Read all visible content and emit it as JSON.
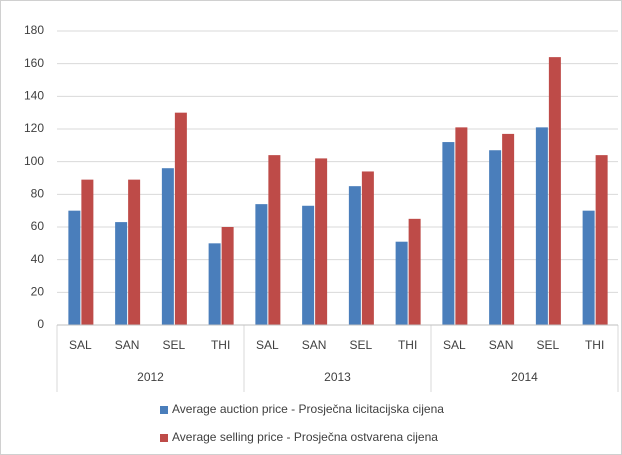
{
  "chart_data": {
    "type": "bar",
    "categories": [
      "SAL",
      "SAN",
      "SEL",
      "THI",
      "SAL",
      "SAN",
      "SEL",
      "THI",
      "SAL",
      "SAN",
      "SEL",
      "THI"
    ],
    "category_groups": [
      "2012",
      "2013",
      "2014"
    ],
    "series": [
      {
        "name": "Average auction price - Prosječna licitacijska cijena",
        "color": "#4a7ebb",
        "values": [
          70,
          63,
          96,
          50,
          74,
          73,
          85,
          51,
          112,
          107,
          121,
          70
        ]
      },
      {
        "name": "Average selling price - Prosječna ostvarena cijena",
        "color": "#be4b48",
        "values": [
          89,
          89,
          130,
          60,
          104,
          102,
          94,
          65,
          121,
          117,
          164,
          104
        ]
      }
    ],
    "ylim": [
      0,
      180
    ],
    "yticks": [
      0,
      20,
      40,
      60,
      80,
      100,
      120,
      140,
      160,
      180
    ],
    "grid": true,
    "legend": "bottom"
  }
}
